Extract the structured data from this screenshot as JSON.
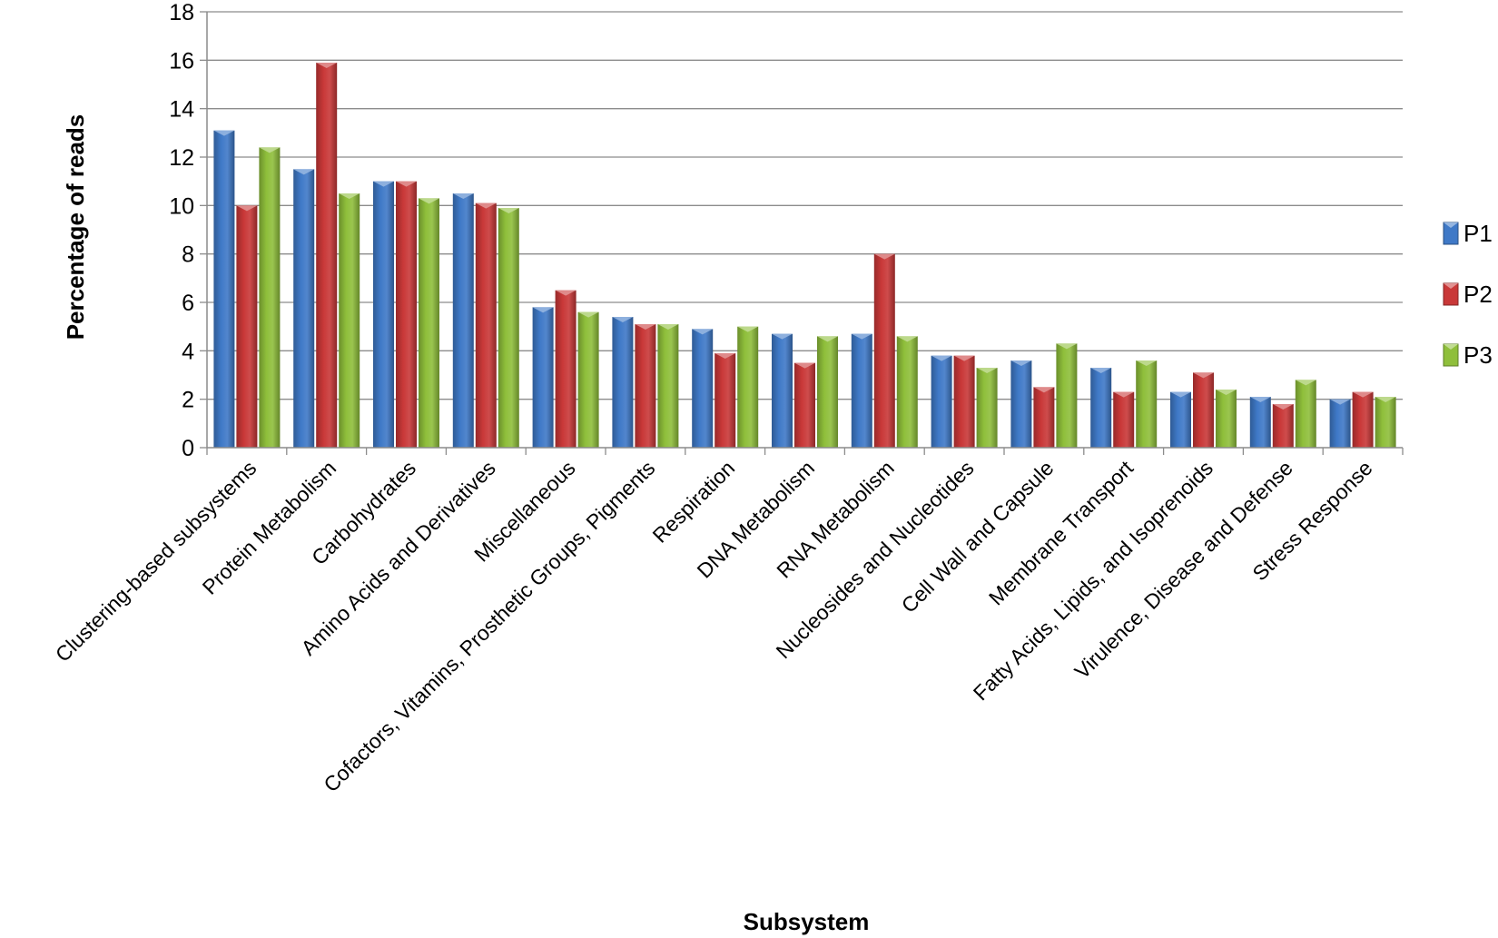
{
  "chart_data": {
    "type": "bar",
    "xlabel": "Subsystem",
    "ylabel": "Percentage of reads",
    "ylim": [
      0,
      18
    ],
    "ytick_step": 2,
    "yticks": [
      "0",
      "2",
      "4",
      "6",
      "8",
      "10",
      "12",
      "14",
      "16",
      "18"
    ],
    "grid": "horizontal",
    "legend_position": "right",
    "categories": [
      "Clustering-based subsystems",
      "Protein Metabolism",
      "Carbohydrates",
      "Amino Acids and Derivatives",
      "Miscellaneous",
      "Cofactors, Vitamins, Prosthetic Groups, Pigments",
      "Respiration",
      "DNA Metabolism",
      "RNA Metabolism",
      "Nucleosides and Nucleotides",
      "Cell Wall and Capsule",
      "Membrane Transport",
      "Fatty Acids, Lipids, and Isoprenoids",
      "Virulence, Disease and Defense",
      "Stress Response"
    ],
    "series": [
      {
        "name": "P1",
        "color": "#3f79c7",
        "values": [
          13.1,
          11.5,
          11.0,
          10.5,
          5.8,
          5.4,
          4.9,
          4.7,
          4.7,
          3.8,
          3.6,
          3.3,
          2.3,
          2.1,
          2.0
        ]
      },
      {
        "name": "P2",
        "color": "#c93838",
        "values": [
          10.0,
          15.9,
          11.0,
          10.1,
          6.5,
          5.1,
          3.9,
          3.5,
          8.0,
          3.8,
          2.5,
          2.3,
          3.1,
          1.8,
          2.3
        ]
      },
      {
        "name": "P3",
        "color": "#8fbf3b",
        "values": [
          12.4,
          10.5,
          10.3,
          9.9,
          5.6,
          5.1,
          5.0,
          4.6,
          4.6,
          3.3,
          4.3,
          3.6,
          2.4,
          2.8,
          2.1
        ]
      }
    ]
  }
}
